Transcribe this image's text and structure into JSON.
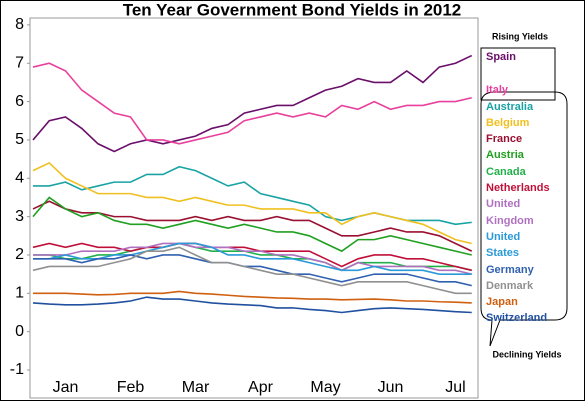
{
  "chart_data": {
    "type": "line",
    "title": "Ten Year Government Bond Yields in 2012",
    "annotations": {
      "rising": "Rising Yields",
      "declining": "Declining Yields"
    },
    "categories": [
      null,
      null,
      "Jan",
      null,
      null,
      null,
      "Feb",
      null,
      null,
      null,
      "Mar",
      null,
      null,
      null,
      "Apr",
      null,
      null,
      null,
      "May",
      null,
      null,
      null,
      "Jun",
      null,
      null,
      null,
      "Jul",
      null
    ],
    "ylim": [
      -1.73,
      8.18
    ],
    "yticks": [
      -1,
      0,
      1,
      2,
      3,
      4,
      5,
      6,
      7,
      8
    ],
    "grid": false,
    "series": [
      {
        "name": "Spain",
        "color": "#6a0f6a",
        "values": [
          5.0,
          5.5,
          5.6,
          5.3,
          4.9,
          4.7,
          4.9,
          5.0,
          4.9,
          5.0,
          5.1,
          5.3,
          5.4,
          5.7,
          5.8,
          5.9,
          5.9,
          6.1,
          6.3,
          6.4,
          6.6,
          6.5,
          6.5,
          6.8,
          6.5,
          6.9,
          7.0,
          7.2
        ]
      },
      {
        "name": "Italy",
        "color": "#e8409c",
        "values": [
          6.9,
          7.0,
          6.8,
          6.3,
          6.0,
          5.7,
          5.6,
          5.0,
          5.0,
          4.9,
          5.0,
          5.1,
          5.2,
          5.5,
          5.6,
          5.7,
          5.6,
          5.7,
          5.6,
          5.9,
          5.8,
          6.0,
          5.8,
          5.9,
          5.9,
          6.0,
          6.0,
          6.1
        ]
      },
      {
        "name": "Australia",
        "color": "#1aa3a3",
        "values": [
          3.8,
          3.8,
          3.9,
          3.7,
          3.8,
          3.9,
          3.9,
          4.1,
          4.1,
          4.3,
          4.2,
          4.0,
          3.8,
          3.9,
          3.6,
          3.5,
          3.4,
          3.3,
          3.0,
          2.9,
          3.0,
          3.1,
          3.0,
          2.9,
          2.9,
          2.9,
          2.8,
          2.85
        ]
      },
      {
        "name": "Belgium",
        "color": "#f0c020",
        "values": [
          4.2,
          4.4,
          4.0,
          3.8,
          3.6,
          3.6,
          3.6,
          3.5,
          3.5,
          3.4,
          3.5,
          3.4,
          3.3,
          3.3,
          3.2,
          3.2,
          3.2,
          3.1,
          3.1,
          2.8,
          3.0,
          3.1,
          3.0,
          2.9,
          2.8,
          2.6,
          2.4,
          2.3
        ]
      },
      {
        "name": "France",
        "color": "#9a1030",
        "values": [
          3.2,
          3.4,
          3.2,
          3.1,
          3.1,
          3.0,
          3.0,
          2.9,
          2.9,
          2.9,
          3.0,
          2.9,
          3.0,
          2.9,
          2.9,
          3.0,
          2.9,
          2.9,
          2.7,
          2.5,
          2.5,
          2.6,
          2.7,
          2.6,
          2.6,
          2.5,
          2.3,
          2.1
        ]
      },
      {
        "name": "Austria",
        "color": "#20a020",
        "values": [
          3.0,
          3.5,
          3.2,
          3.0,
          3.1,
          2.9,
          2.8,
          2.8,
          2.7,
          2.8,
          2.9,
          2.8,
          2.7,
          2.8,
          2.7,
          2.6,
          2.6,
          2.5,
          2.3,
          2.1,
          2.4,
          2.4,
          2.5,
          2.4,
          2.3,
          2.2,
          2.1,
          2.0
        ]
      },
      {
        "name": "Canada",
        "color": "#22b04a",
        "values": [
          2.0,
          2.0,
          1.9,
          1.9,
          2.0,
          2.0,
          2.1,
          2.2,
          2.2,
          2.3,
          2.2,
          2.1,
          2.1,
          2.1,
          2.0,
          2.0,
          1.9,
          1.9,
          1.8,
          1.6,
          1.8,
          1.8,
          1.8,
          1.7,
          1.7,
          1.7,
          1.7,
          1.6
        ]
      },
      {
        "name": "Netherlands",
        "color": "#c0103a",
        "values": [
          2.2,
          2.3,
          2.2,
          2.3,
          2.2,
          2.2,
          2.1,
          2.2,
          2.2,
          2.3,
          2.3,
          2.2,
          2.2,
          2.2,
          2.1,
          2.1,
          2.1,
          2.1,
          1.9,
          1.7,
          1.9,
          2.0,
          2.0,
          1.9,
          1.9,
          1.8,
          1.7,
          1.6
        ]
      },
      {
        "name": "United Kingdom",
        "color": "#b070c0",
        "values": [
          2.0,
          2.0,
          2.0,
          2.1,
          2.1,
          2.1,
          2.2,
          2.2,
          2.3,
          2.3,
          2.2,
          2.2,
          2.2,
          2.1,
          2.1,
          2.0,
          2.0,
          1.9,
          1.8,
          1.6,
          1.8,
          1.7,
          1.7,
          1.7,
          1.7,
          1.6,
          1.6,
          1.5
        ]
      },
      {
        "name": "United States",
        "color": "#2a9ad8",
        "values": [
          1.9,
          1.9,
          2.0,
          1.9,
          1.9,
          2.0,
          2.0,
          2.1,
          2.2,
          2.3,
          2.3,
          2.2,
          2.0,
          2.0,
          1.9,
          1.9,
          1.9,
          1.8,
          1.7,
          1.6,
          1.6,
          1.7,
          1.6,
          1.6,
          1.6,
          1.5,
          1.5,
          1.5
        ]
      },
      {
        "name": "Germany",
        "color": "#3060b0",
        "values": [
          1.9,
          1.9,
          1.9,
          1.8,
          1.9,
          1.9,
          2.0,
          1.9,
          2.0,
          2.0,
          1.9,
          1.8,
          1.8,
          1.7,
          1.7,
          1.6,
          1.5,
          1.5,
          1.4,
          1.3,
          1.4,
          1.5,
          1.5,
          1.5,
          1.4,
          1.3,
          1.3,
          1.2
        ]
      },
      {
        "name": "Denmark",
        "color": "#909090",
        "values": [
          1.6,
          1.7,
          1.7,
          1.7,
          1.7,
          1.8,
          1.9,
          2.1,
          2.1,
          2.2,
          2.0,
          1.8,
          1.8,
          1.7,
          1.6,
          1.5,
          1.5,
          1.4,
          1.3,
          1.2,
          1.3,
          1.3,
          1.3,
          1.3,
          1.2,
          1.1,
          1.0,
          1.0
        ]
      },
      {
        "name": "Japan",
        "color": "#d06010",
        "values": [
          1.0,
          1.0,
          1.0,
          0.98,
          0.96,
          0.97,
          1.0,
          1.0,
          1.0,
          1.05,
          1.0,
          0.98,
          0.95,
          0.92,
          0.9,
          0.88,
          0.87,
          0.85,
          0.85,
          0.83,
          0.84,
          0.85,
          0.83,
          0.8,
          0.8,
          0.78,
          0.77,
          0.75
        ]
      },
      {
        "name": "Switzerland",
        "color": "#2050a0",
        "values": [
          0.75,
          0.72,
          0.7,
          0.7,
          0.72,
          0.75,
          0.8,
          0.9,
          0.85,
          0.85,
          0.8,
          0.75,
          0.72,
          0.7,
          0.68,
          0.62,
          0.62,
          0.58,
          0.55,
          0.5,
          0.55,
          0.6,
          0.62,
          0.6,
          0.58,
          0.55,
          0.52,
          0.5
        ]
      }
    ]
  }
}
